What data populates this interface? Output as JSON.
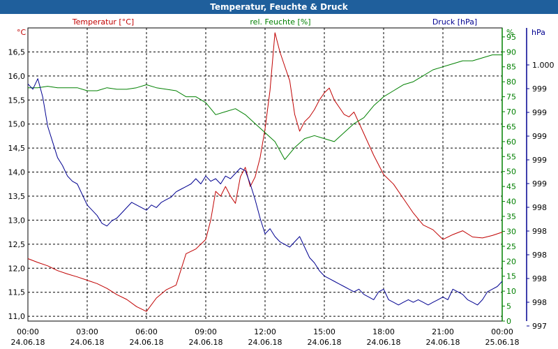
{
  "window": {
    "title": "Temperatur, Feuchte & Druck"
  },
  "colors": {
    "temperature": "#c00000",
    "humidity": "#008000",
    "pressure": "#000090",
    "titlebar": "#1f5f9c"
  },
  "chart_data": {
    "type": "line",
    "title": "Temperatur, Feuchte & Druck",
    "grid": true,
    "x_ticks": [
      {
        "hour": 0,
        "time": "00:00",
        "date": "24.06.18"
      },
      {
        "hour": 3,
        "time": "03:00",
        "date": "24.06.18"
      },
      {
        "hour": 6,
        "time": "06:00",
        "date": "24.06.18"
      },
      {
        "hour": 9,
        "time": "09:00",
        "date": "24.06.18"
      },
      {
        "hour": 12,
        "time": "12:00",
        "date": "24.06.18"
      },
      {
        "hour": 15,
        "time": "15:00",
        "date": "24.06.18"
      },
      {
        "hour": 18,
        "time": "18:00",
        "date": "24.06.18"
      },
      {
        "hour": 21,
        "time": "21:00",
        "date": "24.06.18"
      },
      {
        "hour": 24,
        "time": "00:00",
        "date": "25.06.18"
      }
    ],
    "xlim": [
      0,
      24
    ],
    "axes": {
      "temperature": {
        "unit": "°C",
        "ylim": [
          10.9,
          17.0
        ],
        "ticks": [
          "11,0",
          "11,5",
          "12,0",
          "12,5",
          "13,0",
          "13,5",
          "14,0",
          "14,5",
          "15,0",
          "15,5",
          "16,0",
          "16,5"
        ],
        "tick_values": [
          11.0,
          11.5,
          12.0,
          12.5,
          13.0,
          13.5,
          14.0,
          14.5,
          15.0,
          15.5,
          16.0,
          16.5
        ]
      },
      "humidity": {
        "unit": "%",
        "ylim": [
          0,
          98
        ],
        "ticks": [
          "0",
          "5",
          "10",
          "15",
          "20",
          "25",
          "30",
          "35",
          "40",
          "45",
          "50",
          "55",
          "60",
          "65",
          "70",
          "75",
          "80",
          "85",
          "90",
          "95"
        ],
        "tick_values": [
          0,
          5,
          10,
          15,
          20,
          25,
          30,
          35,
          40,
          45,
          50,
          55,
          60,
          65,
          70,
          75,
          80,
          85,
          90,
          95
        ]
      },
      "pressure": {
        "unit": "hPa",
        "ticks": [
          "1.000",
          "999",
          "999",
          "999",
          "999",
          "999",
          "998",
          "998",
          "998",
          "998",
          "998",
          "997"
        ]
      }
    },
    "series": [
      {
        "name": "Temperatur [°C]",
        "axis": "temperature",
        "x": [
          0,
          0.5,
          1,
          1.5,
          2,
          2.5,
          3,
          3.5,
          4,
          4.5,
          5,
          5.5,
          6,
          6.5,
          7,
          7.5,
          8,
          8.5,
          9,
          9.25,
          9.5,
          9.75,
          10,
          10.25,
          10.5,
          10.75,
          11,
          11.25,
          11.5,
          11.75,
          12,
          12.25,
          12.5,
          12.75,
          13,
          13.25,
          13.5,
          13.75,
          14,
          14.25,
          14.5,
          14.75,
          15,
          15.25,
          15.5,
          15.75,
          16,
          16.25,
          16.5,
          17,
          17.5,
          18,
          18.5,
          19,
          19.5,
          20,
          20.5,
          21,
          21.5,
          22,
          22.5,
          23,
          23.5,
          24
        ],
        "values": [
          12.2,
          12.12,
          12.05,
          11.95,
          11.88,
          11.82,
          11.75,
          11.68,
          11.58,
          11.45,
          11.35,
          11.2,
          11.1,
          11.38,
          11.55,
          11.65,
          12.3,
          12.4,
          12.6,
          13.0,
          13.6,
          13.5,
          13.7,
          13.5,
          13.35,
          13.9,
          14.1,
          13.7,
          13.9,
          14.3,
          14.9,
          15.7,
          16.9,
          16.5,
          16.2,
          15.9,
          15.2,
          14.85,
          15.05,
          15.15,
          15.3,
          15.5,
          15.65,
          15.75,
          15.5,
          15.35,
          15.2,
          15.15,
          15.25,
          14.8,
          14.35,
          13.95,
          13.75,
          13.45,
          13.15,
          12.9,
          12.8,
          12.6,
          12.7,
          12.78,
          12.65,
          12.63,
          12.68,
          12.75
        ]
      },
      {
        "name": "rel. Feuchte [%]",
        "axis": "humidity",
        "x": [
          0,
          0.5,
          1,
          1.5,
          2,
          2.5,
          3,
          3.5,
          4,
          4.5,
          5,
          5.5,
          6,
          6.5,
          7,
          7.5,
          8,
          8.5,
          9,
          9.5,
          10,
          10.5,
          11,
          11.5,
          12,
          12.5,
          13,
          13.5,
          14,
          14.5,
          15,
          15.5,
          16,
          16.5,
          17,
          17.5,
          18,
          18.5,
          19,
          19.5,
          20,
          20.5,
          21,
          21.5,
          22,
          22.5,
          23,
          23.5,
          24
        ],
        "values": [
          78,
          78,
          78.5,
          78,
          78,
          78,
          77,
          77,
          78,
          77.5,
          77.5,
          78,
          79,
          78,
          77.5,
          77,
          75,
          75,
          73,
          69,
          70,
          71,
          69,
          66,
          63,
          60,
          54,
          58,
          61,
          62,
          61,
          60,
          63,
          66,
          68,
          72,
          75,
          77,
          79,
          80,
          82,
          84,
          85,
          86,
          87,
          87,
          88,
          89,
          89
        ]
      },
      {
        "name": "Druck [hPa]",
        "axis": "pressure",
        "x": [
          0,
          0.25,
          0.5,
          0.75,
          1,
          1.25,
          1.5,
          1.75,
          2,
          2.25,
          2.5,
          2.75,
          3,
          3.25,
          3.5,
          3.75,
          4,
          4.25,
          4.5,
          4.75,
          5,
          5.25,
          5.5,
          5.75,
          6,
          6.25,
          6.5,
          6.75,
          7,
          7.25,
          7.5,
          7.75,
          8,
          8.25,
          8.5,
          8.75,
          9,
          9.25,
          9.5,
          9.75,
          10,
          10.25,
          10.5,
          10.75,
          11,
          11.25,
          11.5,
          11.75,
          12,
          12.25,
          12.5,
          12.75,
          13,
          13.25,
          13.5,
          13.75,
          14,
          14.25,
          14.5,
          14.75,
          15,
          15.25,
          15.5,
          15.75,
          16,
          16.25,
          16.5,
          16.75,
          17,
          17.25,
          17.5,
          17.75,
          18,
          18.25,
          18.5,
          18.75,
          19,
          19.25,
          19.5,
          19.75,
          20,
          20.25,
          20.5,
          20.75,
          21,
          21.25,
          21.5,
          21.75,
          22,
          22.25,
          22.5,
          22.75,
          23,
          23.25,
          23.5,
          23.75,
          24
        ],
        "values": [
          0.88,
          0.86,
          0.9,
          0.83,
          0.72,
          0.66,
          0.6,
          0.57,
          0.53,
          0.51,
          0.5,
          0.46,
          0.42,
          0.4,
          0.38,
          0.35,
          0.34,
          0.36,
          0.37,
          0.39,
          0.41,
          0.43,
          0.42,
          0.41,
          0.4,
          0.42,
          0.41,
          0.43,
          0.44,
          0.45,
          0.47,
          0.48,
          0.49,
          0.5,
          0.52,
          0.5,
          0.53,
          0.51,
          0.52,
          0.5,
          0.53,
          0.52,
          0.54,
          0.56,
          0.55,
          0.5,
          0.44,
          0.37,
          0.31,
          0.33,
          0.3,
          0.28,
          0.27,
          0.26,
          0.28,
          0.3,
          0.26,
          0.22,
          0.2,
          0.17,
          0.15,
          0.14,
          0.13,
          0.12,
          0.11,
          0.1,
          0.09,
          0.1,
          0.08,
          0.07,
          0.06,
          0.09,
          0.1,
          0.06,
          0.05,
          0.04,
          0.05,
          0.06,
          0.05,
          0.06,
          0.05,
          0.04,
          0.05,
          0.06,
          0.07,
          0.06,
          0.1,
          0.09,
          0.08,
          0.06,
          0.05,
          0.04,
          0.06,
          0.09,
          0.1,
          0.11,
          0.13
        ]
      }
    ]
  }
}
